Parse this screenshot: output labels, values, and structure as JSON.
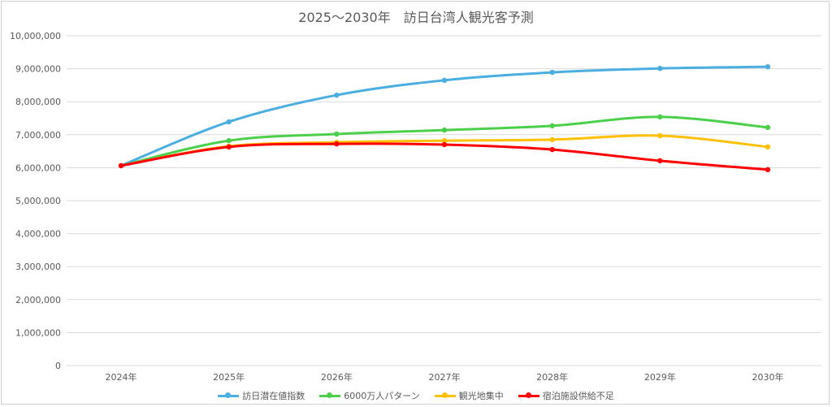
{
  "chart_data": {
    "type": "line",
    "title": "2025～2030年　訪日台湾人観光客予測",
    "categories": [
      "2024年",
      "2025年",
      "2026年",
      "2027年",
      "2028年",
      "2029年",
      "2030年"
    ],
    "ylim": [
      0,
      10000000
    ],
    "yticks": [
      "0",
      "1,000,000",
      "2,000,000",
      "3,000,000",
      "4,000,000",
      "5,000,000",
      "6,000,000",
      "7,000,000",
      "8,000,000",
      "9,000,000",
      "10,000,000"
    ],
    "grid": true,
    "legend_position": "bottom",
    "series": [
      {
        "name": "訪日潜在値指数",
        "color": "#4aaee0",
        "values": [
          6060000,
          7390000,
          8200000,
          8650000,
          8890000,
          9010000,
          9060000
        ]
      },
      {
        "name": "6000万人パターン",
        "color": "#4cd04c",
        "values": [
          6060000,
          6820000,
          7020000,
          7140000,
          7270000,
          7540000,
          7220000
        ]
      },
      {
        "name": "観光地集中",
        "color": "#ffc000",
        "values": [
          6060000,
          6650000,
          6770000,
          6820000,
          6850000,
          6970000,
          6630000
        ]
      },
      {
        "name": "宿泊施設供給不足",
        "color": "#ff0000",
        "values": [
          6060000,
          6630000,
          6720000,
          6700000,
          6550000,
          6210000,
          5940000
        ]
      }
    ]
  }
}
